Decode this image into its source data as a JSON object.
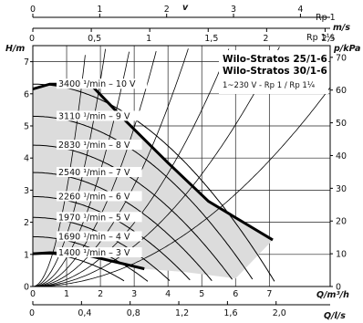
{
  "chart_data": {
    "type": "line",
    "title": "Wilo-Stratos 25/1-6",
    "title2": "Wilo-Stratos 30/1-6",
    "subtitle": "1~230 V - Rp 1 / Rp 1¼",
    "xlabel": "Q/m³/h",
    "xlim": [
      0,
      8.8
    ],
    "xticks": [
      0,
      1,
      2,
      3,
      4,
      5,
      6,
      7
    ],
    "x2label": "Q/l/s",
    "x2ticks": [
      "0",
      "0,4",
      "0,8",
      "1,2",
      "1,6",
      "2,0"
    ],
    "x2values": [
      0,
      0.4,
      0.8,
      1.2,
      1.6,
      2.0
    ],
    "ylabel_left": "H/m",
    "ylim_left": [
      0,
      7.5
    ],
    "yticks_left": [
      0,
      1,
      2,
      3,
      4,
      5,
      6,
      7
    ],
    "ylabel_right": "p/kPa",
    "yticks_right": [
      0,
      10,
      20,
      30,
      40,
      50,
      60,
      70
    ],
    "top_axis_label": "v",
    "top_axis_1": {
      "unit": "Rp 1",
      "unit2": "m/s",
      "ticks": [
        0,
        1,
        2,
        3,
        4
      ],
      "m3h_per_unit": 1.98
    },
    "top_axis_2": {
      "unit": "Rp 1¼",
      "ticks": [
        "0",
        "0,5",
        "1",
        "1,5",
        "2",
        "2,5"
      ],
      "values": [
        0,
        0.5,
        1,
        1.5,
        2,
        2.5
      ],
      "m3h_per_unit": 3.46
    },
    "speed_curves": [
      {
        "label": "3400 ¹/min – 10 V",
        "h0": 6.3
      },
      {
        "label": "3110 ¹/min – 9 V",
        "h0": 5.3
      },
      {
        "label": "2830 ¹/min – 8 V",
        "h0": 4.4
      },
      {
        "label": "2540 ¹/min – 7 V",
        "h0": 3.55
      },
      {
        "label": "2260 ¹/min – 6 V",
        "h0": 2.8
      },
      {
        "label": "1970 ¹/min – 5 V",
        "h0": 2.15
      },
      {
        "label": "1690 ¹/min – 4 V",
        "h0": 1.55
      },
      {
        "label": "1400 ¹/min – 3 V",
        "h0": 1.05
      }
    ],
    "max_curve": [
      [
        0,
        6.15
      ],
      [
        0.5,
        6.3
      ],
      [
        1.7,
        6.3
      ],
      [
        2.8,
        5.1
      ],
      [
        4.0,
        3.85
      ],
      [
        5.2,
        2.65
      ],
      [
        7.1,
        1.45
      ]
    ],
    "min_curve": [
      [
        0,
        1.02
      ],
      [
        0.5,
        1.05
      ],
      [
        1.5,
        1.0
      ],
      [
        3.3,
        0.55
      ]
    ],
    "system_curve_k": [
      3.0,
      1.6,
      0.9,
      0.55,
      0.35,
      0.22,
      0.14,
      0.08
    ],
    "grid": true
  }
}
